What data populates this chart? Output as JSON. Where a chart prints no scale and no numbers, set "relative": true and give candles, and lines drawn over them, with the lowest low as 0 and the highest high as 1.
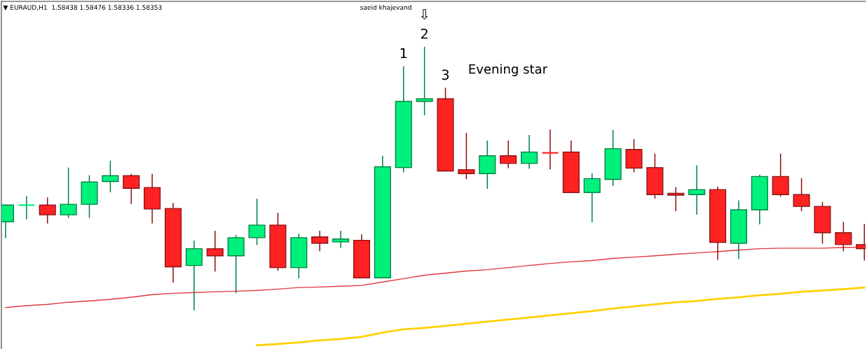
{
  "chart_data": {
    "type": "candlestick",
    "relative": true,
    "title": "▼ EURAUD,H1  1.58438 1.58476 1.58336 1.58353",
    "categories": [
      null,
      null,
      null,
      null,
      null,
      null,
      null,
      null,
      null,
      null,
      null,
      null,
      null,
      null,
      null,
      null,
      null,
      null,
      null,
      null,
      null,
      null,
      null,
      null,
      null,
      null,
      null,
      null,
      null,
      null,
      null,
      null,
      null,
      null,
      null,
      null,
      null,
      null,
      null,
      null,
      null,
      null
    ],
    "ohlc": [
      [
        0.336,
        0.399,
        0.275,
        0.399
      ],
      [
        0.399,
        0.431,
        0.347,
        0.399
      ],
      [
        0.399,
        0.426,
        0.331,
        0.362
      ],
      [
        0.362,
        0.54,
        0.352,
        0.402
      ],
      [
        0.402,
        0.511,
        0.352,
        0.487
      ],
      [
        0.489,
        0.566,
        0.45,
        0.511
      ],
      [
        0.511,
        0.516,
        0.405,
        0.463
      ],
      [
        0.466,
        0.516,
        0.331,
        0.384
      ],
      [
        0.386,
        0.405,
        0.106,
        0.164
      ],
      [
        0.169,
        0.262,
        0,
        0.233
      ],
      [
        0.233,
        0.299,
        0.148,
        0.206
      ],
      [
        0.206,
        0.283,
        0.066,
        0.275
      ],
      [
        0.275,
        0.421,
        0.249,
        0.323
      ],
      [
        0.323,
        0.368,
        0.151,
        0.161
      ],
      [
        0.161,
        0.288,
        0.122,
        0.275
      ],
      [
        0.278,
        0.299,
        0.225,
        0.254
      ],
      [
        0.259,
        0.299,
        0.238,
        0.27
      ],
      [
        0.265,
        0.286,
        0.122,
        0.122
      ],
      [
        0.122,
        0.585,
        0.122,
        0.545
      ],
      [
        0.542,
        0.926,
        0.526,
        0.794
      ],
      [
        0.794,
        1,
        0.743,
        0.804
      ],
      [
        0.804,
        0.844,
        0.529,
        0.529
      ],
      [
        0.534,
        0.672,
        0.5,
        0.519
      ],
      [
        0.519,
        0.643,
        0.463,
        0.587
      ],
      [
        0.587,
        0.643,
        0.542,
        0.558
      ],
      [
        0.558,
        0.664,
        0.54,
        0.601
      ],
      [
        0.601,
        0.685,
        0.537,
        0.598
      ],
      [
        0.601,
        0.643,
        0.447,
        0.447
      ],
      [
        0.447,
        0.519,
        0.336,
        0.5
      ],
      [
        0.497,
        0.683,
        0.474,
        0.614
      ],
      [
        0.611,
        0.648,
        0.526,
        0.54
      ],
      [
        0.542,
        0.593,
        0.426,
        0.439
      ],
      [
        0.444,
        0.466,
        0.378,
        0.437
      ],
      [
        0.439,
        0.548,
        0.365,
        0.458
      ],
      [
        0.458,
        0.468,
        0.193,
        0.257
      ],
      [
        0.254,
        0.415,
        0.196,
        0.381
      ],
      [
        0.381,
        0.513,
        0.328,
        0.508
      ],
      [
        0.508,
        0.593,
        0.434,
        0.439
      ],
      [
        0.439,
        0.5,
        0.378,
        0.394
      ],
      [
        0.394,
        0.41,
        0.254,
        0.294
      ],
      [
        0.294,
        0.333,
        0.225,
        0.249
      ],
      [
        0.249,
        0.325,
        0.19,
        0.233
      ]
    ],
    "colors": [
      "#00f07c",
      "#00f07c",
      "#ff2222",
      "#00f07c",
      "#00f07c",
      "#00f07c",
      "#ff2222",
      "#ff2222",
      "#ff2222",
      "#00f07c",
      "#ff2222",
      "#00f07c",
      "#00f07c",
      "#ff2222",
      "#00f07c",
      "#ff2222",
      "#00f07c",
      "#ff2222",
      "#00f07c",
      "#00f07c",
      "#00f07c",
      "#ff2222",
      "#ff2222",
      "#00f07c",
      "#ff2222",
      "#00f07c",
      "#ff2222",
      "#ff2222",
      "#00f07c",
      "#00f07c",
      "#ff2222",
      "#ff2222",
      "#ff2222",
      "#00f07c",
      "#ff2222",
      "#00f07c",
      "#00f07c",
      "#ff2222",
      "#ff2222",
      "#ff2222",
      "#ff2222",
      "#ff2222"
    ],
    "series": [
      {
        "type": "line",
        "color": "#e0393e",
        "values": [
          0.009,
          0.016,
          0.021,
          0.029,
          0.034,
          0.04,
          0.048,
          0.058,
          0.063,
          0.066,
          0.069,
          0.071,
          0.074,
          0.079,
          0.085,
          0.087,
          0.09,
          0.093,
          0.106,
          0.119,
          0.132,
          0.14,
          0.148,
          0.153,
          0.161,
          0.169,
          0.177,
          0.183,
          0.188,
          0.196,
          0.201,
          0.206,
          0.212,
          0.217,
          0.222,
          0.228,
          0.233,
          0.235,
          0.235,
          0.235,
          0.238,
          0.239
        ]
      },
      {
        "type": "line",
        "color": "#ffd000",
        "values": [
          null,
          null,
          null,
          null,
          null,
          null,
          null,
          null,
          null,
          null,
          null,
          null,
          -0.135,
          -0.13,
          -0.124,
          -0.116,
          -0.111,
          -0.103,
          -0.087,
          -0.074,
          -0.069,
          -0.061,
          -0.053,
          -0.045,
          -0.037,
          -0.029,
          -0.021,
          -0.013,
          -0.005,
          0.005,
          0.013,
          0.021,
          0.029,
          0.034,
          0.042,
          0.048,
          0.056,
          0.061,
          0.069,
          0.074,
          0.079,
          0.085
        ]
      }
    ],
    "annotations": [
      {
        "text": "1",
        "y": 0.926
      },
      {
        "text": "⇩",
        "y": 1
      },
      {
        "text": "2",
        "y": 1
      },
      {
        "text": "3",
        "y": 0.844
      },
      "Evening star",
      "saeid khajevand"
    ],
    "grid": false,
    "legend": false
  }
}
